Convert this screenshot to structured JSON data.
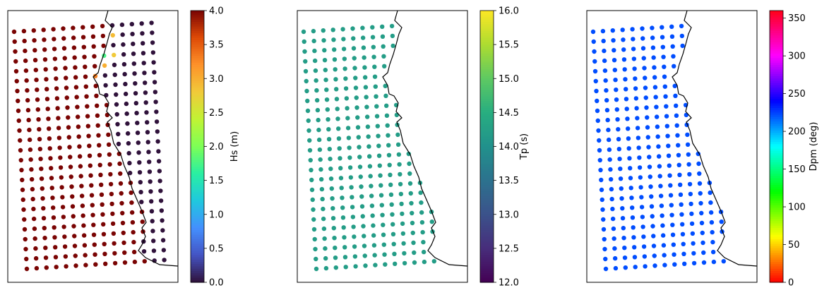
{
  "chart_data": [
    {
      "type": "scatter",
      "variable": "Hs",
      "colorbar_label": "Hs (m)",
      "colormap": "turbo",
      "clim": [
        0.0,
        4.0
      ],
      "ticks": [
        "0.0",
        "0.5",
        "1.0",
        "1.5",
        "2.0",
        "2.5",
        "3.0",
        "3.5",
        "4.0"
      ],
      "land_value": 0.0,
      "sea_value": 4.0,
      "special_points": [
        {
          "lat": 1,
          "lon": 0,
          "value": 2.9
        },
        {
          "lat": 3,
          "lon": 0,
          "value": 1.75
        },
        {
          "lat": 3,
          "lon": 1,
          "value": 2.8
        },
        {
          "lat": 4,
          "lon": 0,
          "value": 3.0
        },
        {
          "lat": 5,
          "lon": 0,
          "value": 3.3
        }
      ],
      "markers": "scatter points on a regular lat/lon grid, coastline overlay"
    },
    {
      "type": "scatter",
      "variable": "Tp",
      "colorbar_label": "Tp (s)",
      "colormap": "viridis",
      "clim": [
        12.0,
        16.0
      ],
      "ticks": [
        "12.0",
        "12.5",
        "13.0",
        "13.5",
        "14.0",
        "14.5",
        "15.0",
        "15.5",
        "16.0"
      ],
      "sea_value": 14.2,
      "markers": "scatter points on ocean cells only, coastline overlay"
    },
    {
      "type": "scatter",
      "variable": "Dpm",
      "colorbar_label": "Dpm (deg)",
      "colormap": "hsv",
      "clim": [
        0,
        360
      ],
      "ticks": [
        "0",
        "50",
        "100",
        "150",
        "200",
        "250",
        "300",
        "350"
      ],
      "sea_value": 222,
      "markers": "scatter points on ocean cells only, coastline overlay"
    }
  ]
}
